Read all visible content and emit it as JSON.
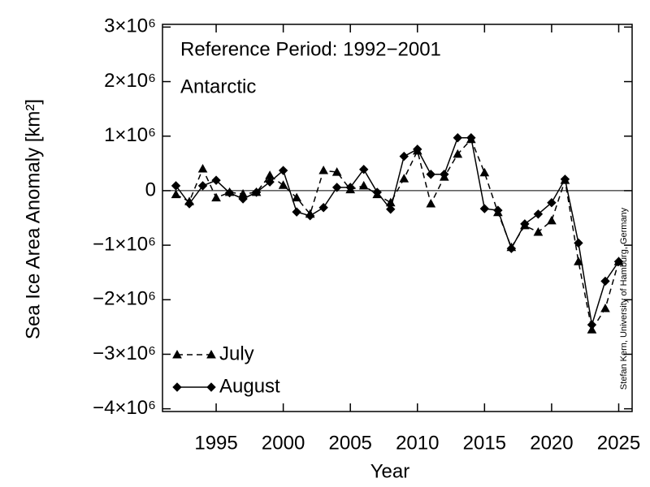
{
  "chart_data": {
    "type": "line",
    "annotations": [
      "Reference Period: 1992−2001",
      "Antarctic"
    ],
    "credit": "Stefan Kern, University of Hamburg, Germany",
    "x_label": "Year",
    "y_label": "Sea Ice Area Anomaly [km²]",
    "x": [
      1992,
      1993,
      1994,
      1995,
      1996,
      1997,
      1998,
      1999,
      2000,
      2001,
      2002,
      2003,
      2004,
      2005,
      2006,
      2007,
      2008,
      2009,
      2010,
      2011,
      2012,
      2013,
      2014,
      2015,
      2016,
      2017,
      2018,
      2019,
      2020,
      2021,
      2022,
      2023,
      2024,
      2025
    ],
    "series": [
      {
        "name": "July",
        "color": "#000000",
        "dash": true,
        "marker": "triangle",
        "values": [
          -70000,
          -200000,
          400000,
          -130000,
          -30000,
          -60000,
          -30000,
          280000,
          100000,
          -130000,
          -430000,
          370000,
          340000,
          20000,
          90000,
          -70000,
          -220000,
          220000,
          730000,
          -240000,
          250000,
          670000,
          940000,
          330000,
          -400000,
          -1040000,
          -640000,
          -760000,
          -550000,
          190000,
          -1300000,
          -2550000,
          -2160000,
          -1300000
        ]
      },
      {
        "name": "August",
        "color": "#000000",
        "dash": false,
        "marker": "diamond",
        "values": [
          90000,
          -240000,
          90000,
          190000,
          -40000,
          -150000,
          -30000,
          160000,
          370000,
          -390000,
          -460000,
          -310000,
          60000,
          60000,
          390000,
          -30000,
          -340000,
          630000,
          760000,
          300000,
          300000,
          970000,
          970000,
          -330000,
          -360000,
          -1060000,
          -610000,
          -430000,
          -220000,
          210000,
          -960000,
          -2460000,
          -1660000,
          -1300000
        ]
      }
    ],
    "xlim": [
      1991,
      2026
    ],
    "xticks": [
      1995,
      2000,
      2005,
      2010,
      2015,
      2020,
      2025
    ],
    "ylim": [
      -4050000,
      3050000
    ],
    "yticks": [
      {
        "value": -4000000,
        "label": "−4×10⁶"
      },
      {
        "value": -3000000,
        "label": "−3×10⁶"
      },
      {
        "value": -2000000,
        "label": "−2×10⁶"
      },
      {
        "value": -1000000,
        "label": "−1×10⁶"
      },
      0,
      {
        "value": 1000000,
        "label": "1×10⁶"
      },
      {
        "value": 2000000,
        "label": "2×10⁶"
      },
      {
        "value": 3000000,
        "label": "3×10⁶"
      }
    ],
    "zero_line": true,
    "legend": "lower left"
  }
}
